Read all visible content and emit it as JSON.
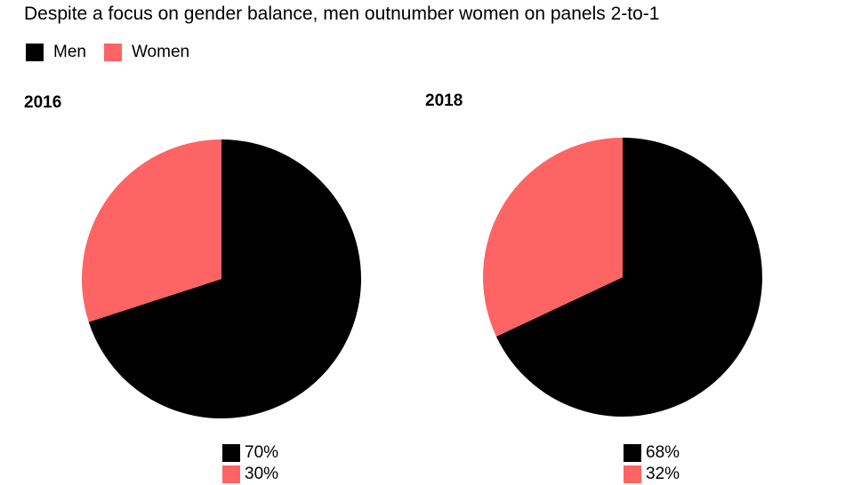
{
  "chart_data": {
    "type": "pie",
    "title": "Despite a focus on gender balance, men outnumber women on panels 2-to-1",
    "legend": {
      "placement": "top-left",
      "entries": [
        {
          "name": "Men",
          "color": "#000000"
        },
        {
          "name": "Women",
          "color": "#ff6464"
        }
      ]
    },
    "charts": [
      {
        "title": "2016",
        "slices": [
          {
            "name": "Men",
            "value": 70,
            "label": "70%",
            "color": "#000000"
          },
          {
            "name": "Women",
            "value": 30,
            "label": "30%",
            "color": "#ff6464"
          }
        ]
      },
      {
        "title": "2018",
        "slices": [
          {
            "name": "Men",
            "value": 68,
            "label": "68%",
            "color": "#000000"
          },
          {
            "name": "Women",
            "value": 32,
            "label": "32%",
            "color": "#ff6464"
          }
        ]
      }
    ]
  }
}
